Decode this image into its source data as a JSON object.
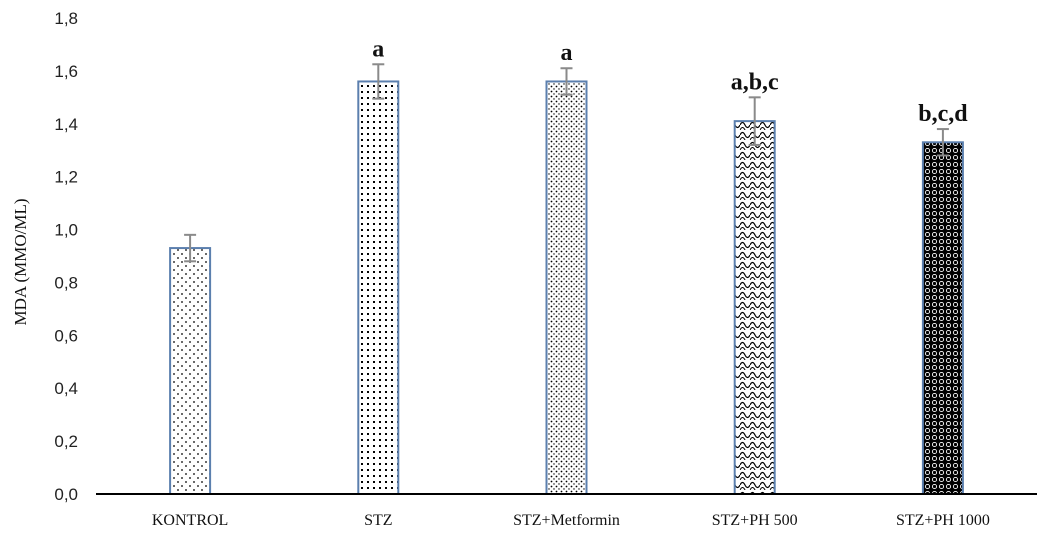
{
  "chart_data": {
    "type": "bar",
    "ylabel": "MDA (MMO/ML)",
    "xlabel": "",
    "ylim": [
      0,
      1.8
    ],
    "yticks": [
      "0,0",
      "0,2",
      "0,4",
      "0,6",
      "0,8",
      "1,0",
      "1,2",
      "1,4",
      "1,6",
      "1,8"
    ],
    "grid": false,
    "categories": [
      "KONTROL",
      "STZ",
      "STZ+Metformin",
      "STZ+PH 500",
      "STZ+PH 1000"
    ],
    "values": [
      0.93,
      1.56,
      1.56,
      1.41,
      1.33
    ],
    "errors": [
      0.05,
      0.065,
      0.05,
      0.09,
      0.05
    ],
    "significance": [
      "",
      "a",
      "a",
      "a,b,c",
      "b,c,d"
    ],
    "patterns": [
      "sparse-dots",
      "grid-dots",
      "dense-dots",
      "waves",
      "dark-circles"
    ],
    "colors": {
      "bar_edge": "#5b7fae",
      "error_bar": "#8a8a8a",
      "axis": "#000000",
      "pattern_ink": "#000000"
    }
  }
}
